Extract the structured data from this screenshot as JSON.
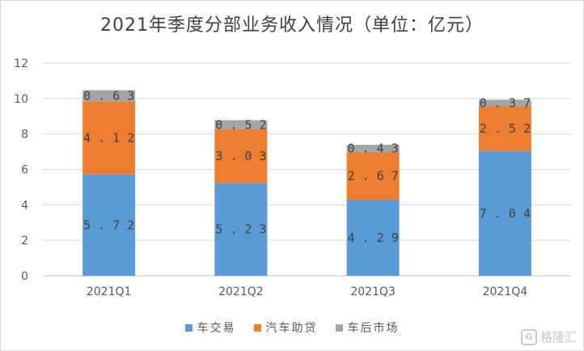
{
  "chart_data": {
    "type": "bar",
    "stacked": true,
    "title": "2021年季度分部业务收入情况（单位：亿元）",
    "categories": [
      "2021Q1",
      "2021Q2",
      "2021Q3",
      "2021Q4"
    ],
    "series": [
      {
        "name": "车交易",
        "values": [
          5.72,
          5.23,
          4.29,
          7.04
        ],
        "color": "#5b9bd5"
      },
      {
        "name": "汽车助贷",
        "values": [
          4.12,
          3.03,
          2.67,
          2.52
        ],
        "color": "#ed7d31"
      },
      {
        "name": "车后市场",
        "values": [
          0.63,
          0.52,
          0.43,
          0.37
        ],
        "color": "#a5a5a5"
      }
    ],
    "ylim": [
      0,
      12
    ],
    "yticks": [
      0,
      2,
      4,
      6,
      8,
      10,
      12
    ],
    "grid": true,
    "legend_position": "bottom"
  },
  "watermark": {
    "icon": "G",
    "text": "格隆汇"
  }
}
